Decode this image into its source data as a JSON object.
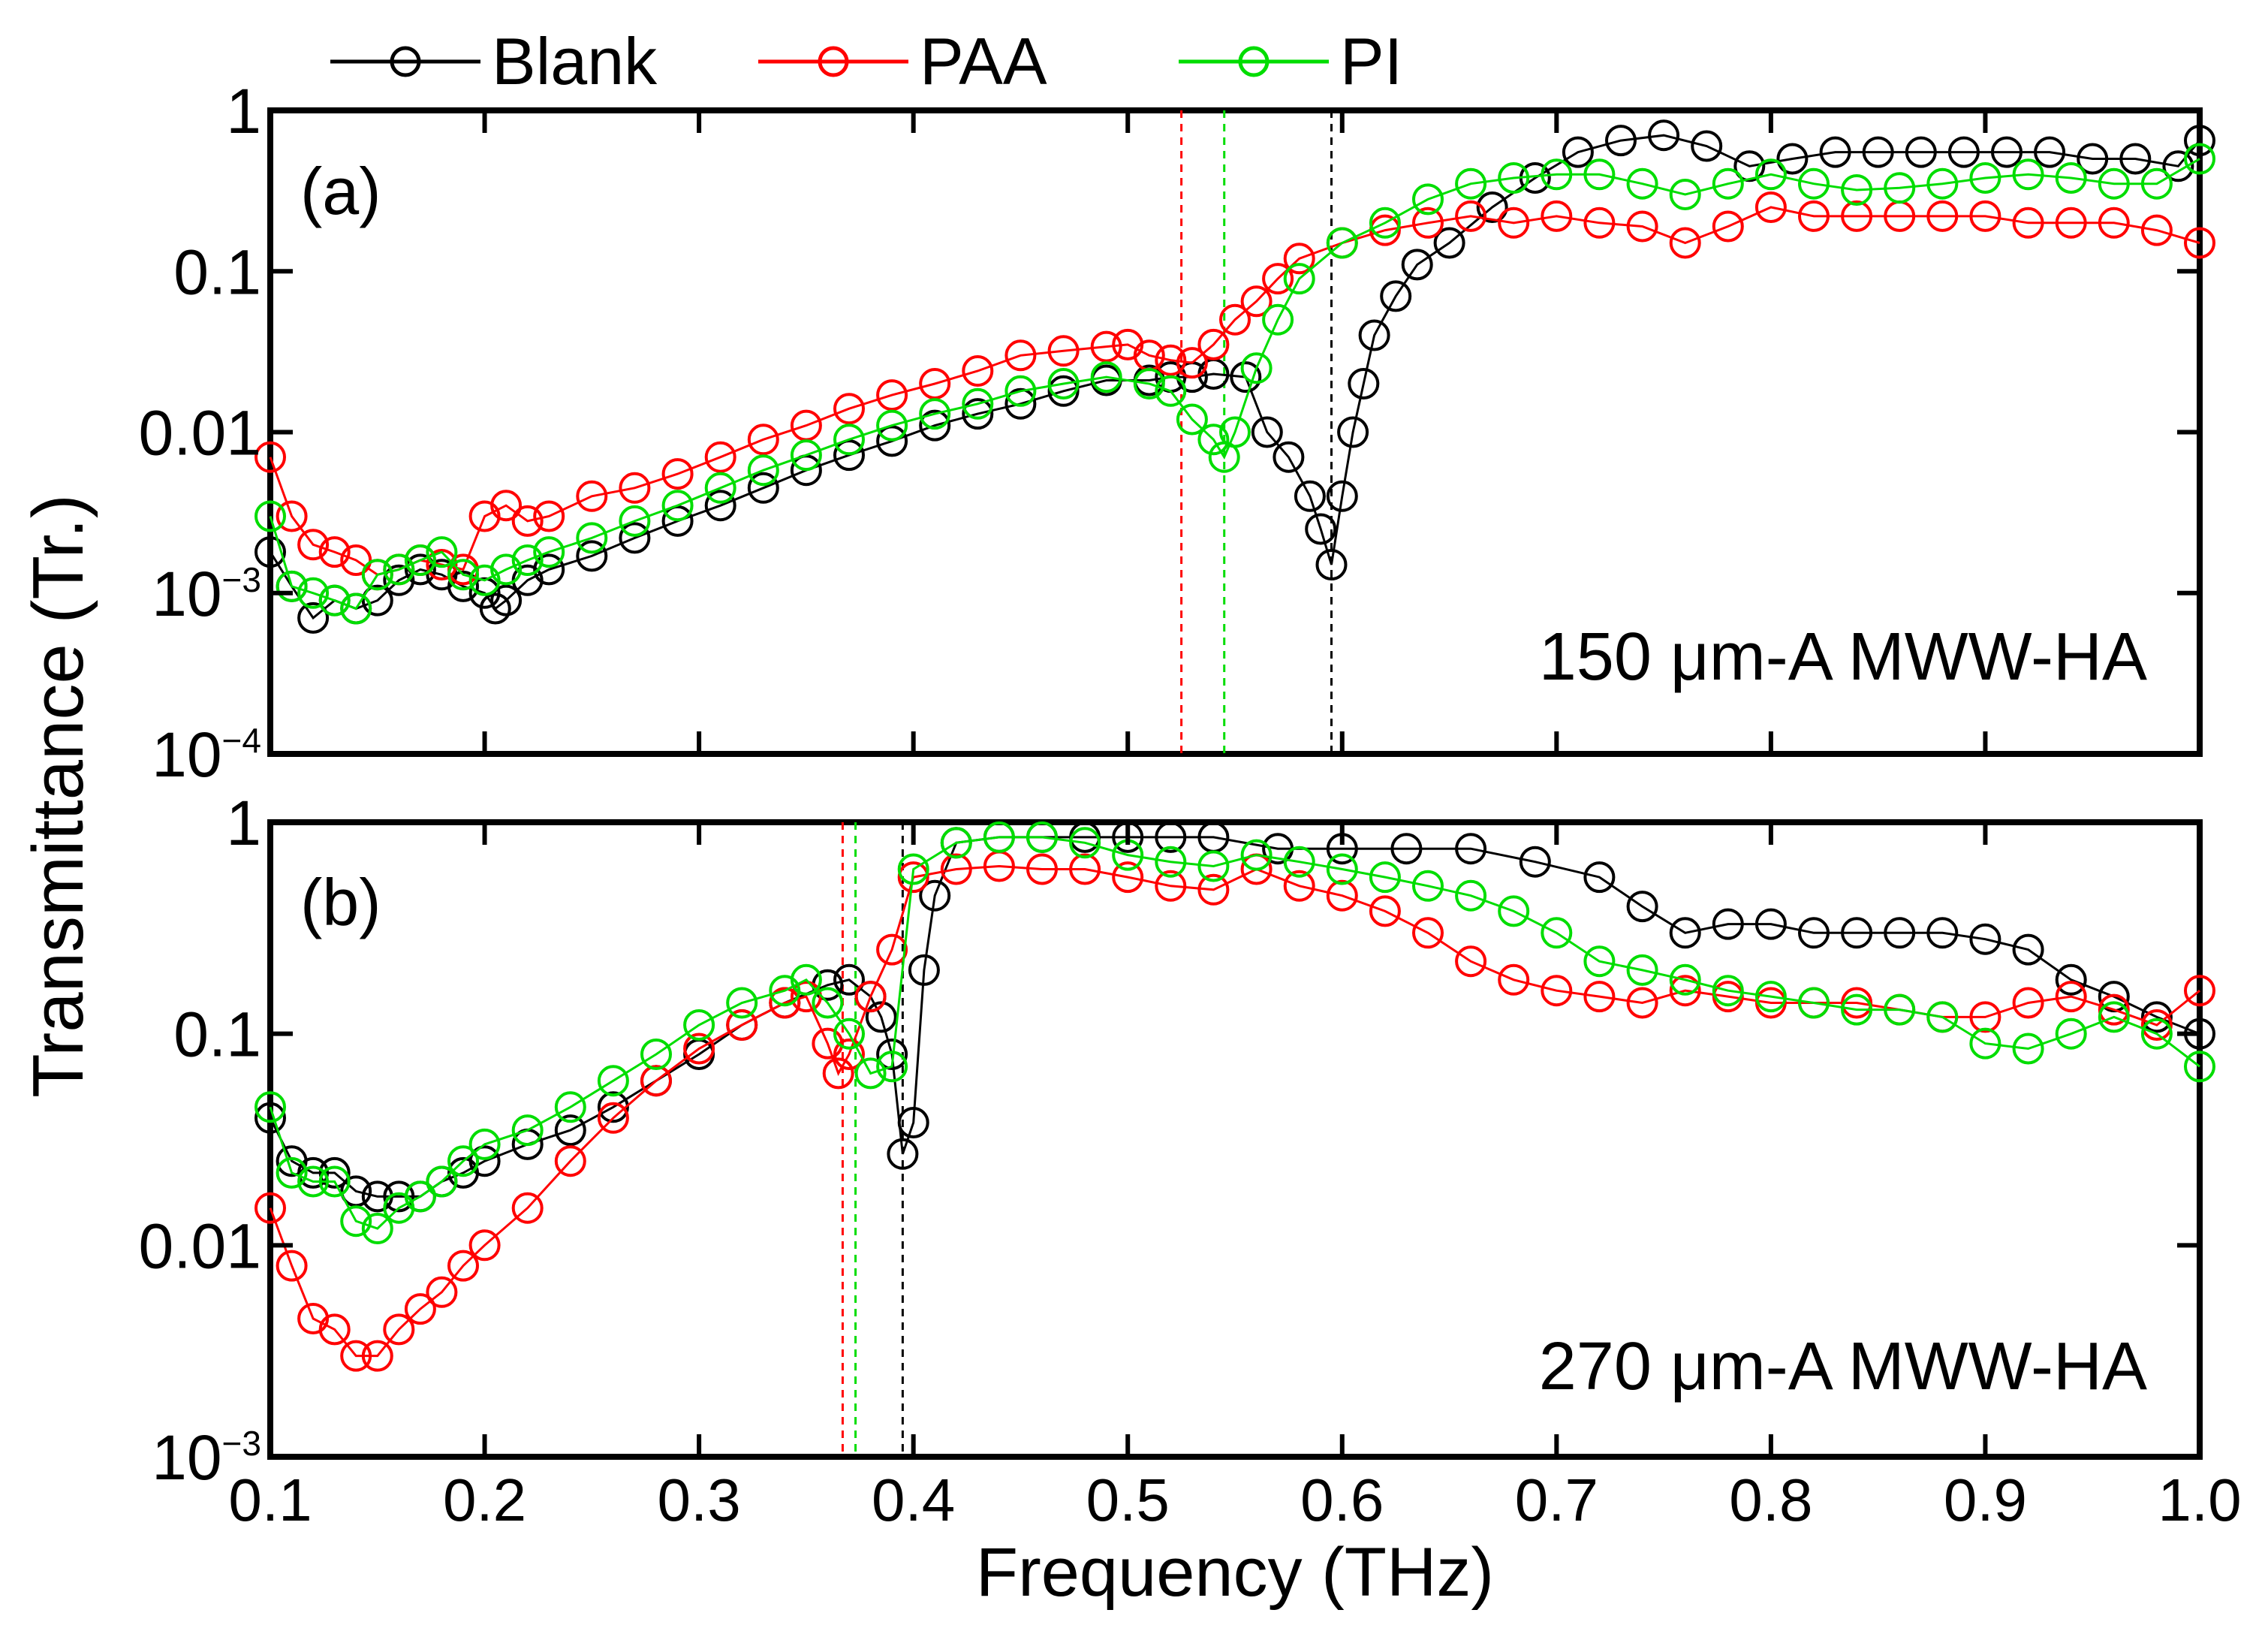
{
  "figure": {
    "ylabel": "Transmittance (Tr.)",
    "xlabel": "Frequency (THz)",
    "x_ticks": [
      "0.1",
      "0.2",
      "0.3",
      "0.4",
      "0.5",
      "0.6",
      "0.7",
      "0.8",
      "0.9",
      "1.0"
    ],
    "legend": [
      {
        "name": "Blank",
        "color": "#000000"
      },
      {
        "name": "PAA",
        "color": "#ff0000"
      },
      {
        "name": "PI",
        "color": "#00dd00"
      }
    ]
  },
  "chart_data": [
    {
      "type": "scatter",
      "panel_label": "(a)",
      "annotation": "150 μm-A MWW-HA",
      "y_scale": "log",
      "xlim": [
        0.1,
        1.0
      ],
      "ylim": [
        0.0001,
        1
      ],
      "y_ticks": [
        {
          "value": 1,
          "mant": "1",
          "exp": ""
        },
        {
          "value": 0.1,
          "mant": "0.1",
          "exp": ""
        },
        {
          "value": 0.01,
          "mant": "0.01",
          "exp": ""
        },
        {
          "value": 0.001,
          "mant": "10",
          "exp": "−3"
        },
        {
          "value": 0.0001,
          "mant": "10",
          "exp": "−4"
        }
      ],
      "vlines": [
        {
          "series": "PAA",
          "x": 0.525
        },
        {
          "series": "PI",
          "x": 0.545
        },
        {
          "series": "Blank",
          "x": 0.595
        }
      ],
      "series": [
        {
          "name": "Blank",
          "color": "#000000",
          "x": [
            0.1,
            0.11,
            0.12,
            0.13,
            0.14,
            0.15,
            0.16,
            0.17,
            0.18,
            0.19,
            0.2,
            0.205,
            0.21,
            0.22,
            0.23,
            0.25,
            0.27,
            0.29,
            0.31,
            0.33,
            0.35,
            0.37,
            0.39,
            0.41,
            0.43,
            0.45,
            0.47,
            0.49,
            0.51,
            0.52,
            0.53,
            0.54,
            0.555,
            0.565,
            0.575,
            0.585,
            0.59,
            0.595,
            0.6,
            0.605,
            0.61,
            0.615,
            0.625,
            0.635,
            0.65,
            0.67,
            0.69,
            0.71,
            0.73,
            0.75,
            0.77,
            0.79,
            0.81,
            0.83,
            0.85,
            0.87,
            0.89,
            0.91,
            0.93,
            0.95,
            0.97,
            0.99,
            1.0
          ],
          "y": [
            0.0018,
            0.0011,
            0.0007,
            0.0009,
            0.0008,
            0.0009,
            0.0012,
            0.0014,
            0.0013,
            0.0011,
            0.001,
            0.0008,
            0.0009,
            0.0012,
            0.0014,
            0.0017,
            0.0022,
            0.0028,
            0.0035,
            0.0045,
            0.0058,
            0.0072,
            0.0088,
            0.011,
            0.013,
            0.015,
            0.018,
            0.021,
            0.021,
            0.022,
            0.022,
            0.023,
            0.022,
            0.01,
            0.007,
            0.004,
            0.0025,
            0.0015,
            0.004,
            0.01,
            0.02,
            0.04,
            0.07,
            0.11,
            0.15,
            0.25,
            0.38,
            0.55,
            0.65,
            0.7,
            0.6,
            0.45,
            0.5,
            0.55,
            0.55,
            0.55,
            0.55,
            0.55,
            0.55,
            0.5,
            0.5,
            0.45,
            0.65
          ]
        },
        {
          "name": "PAA",
          "color": "#ff0000",
          "x": [
            0.1,
            0.11,
            0.12,
            0.13,
            0.14,
            0.15,
            0.16,
            0.17,
            0.18,
            0.19,
            0.2,
            0.21,
            0.22,
            0.23,
            0.25,
            0.27,
            0.29,
            0.31,
            0.33,
            0.35,
            0.37,
            0.39,
            0.41,
            0.43,
            0.45,
            0.47,
            0.49,
            0.5,
            0.51,
            0.52,
            0.53,
            0.54,
            0.55,
            0.56,
            0.57,
            0.58,
            0.6,
            0.62,
            0.64,
            0.66,
            0.68,
            0.7,
            0.72,
            0.74,
            0.76,
            0.78,
            0.8,
            0.82,
            0.84,
            0.86,
            0.88,
            0.9,
            0.92,
            0.94,
            0.96,
            0.98,
            1.0
          ],
          "y": [
            0.007,
            0.003,
            0.002,
            0.0018,
            0.0016,
            0.0013,
            0.0014,
            0.0016,
            0.0015,
            0.0014,
            0.003,
            0.0035,
            0.0028,
            0.003,
            0.004,
            0.0045,
            0.0055,
            0.007,
            0.009,
            0.011,
            0.014,
            0.017,
            0.02,
            0.024,
            0.03,
            0.032,
            0.034,
            0.035,
            0.03,
            0.028,
            0.027,
            0.035,
            0.05,
            0.065,
            0.09,
            0.12,
            0.15,
            0.18,
            0.2,
            0.22,
            0.2,
            0.22,
            0.2,
            0.19,
            0.15,
            0.19,
            0.25,
            0.22,
            0.22,
            0.22,
            0.22,
            0.22,
            0.2,
            0.2,
            0.2,
            0.18,
            0.15
          ]
        },
        {
          "name": "PI",
          "color": "#00dd00",
          "x": [
            0.1,
            0.11,
            0.12,
            0.13,
            0.14,
            0.15,
            0.16,
            0.17,
            0.18,
            0.19,
            0.2,
            0.21,
            0.22,
            0.23,
            0.25,
            0.27,
            0.29,
            0.31,
            0.33,
            0.35,
            0.37,
            0.39,
            0.41,
            0.43,
            0.45,
            0.47,
            0.49,
            0.51,
            0.52,
            0.53,
            0.54,
            0.545,
            0.55,
            0.56,
            0.57,
            0.58,
            0.6,
            0.62,
            0.64,
            0.66,
            0.68,
            0.7,
            0.72,
            0.74,
            0.76,
            0.78,
            0.8,
            0.82,
            0.84,
            0.86,
            0.88,
            0.9,
            0.92,
            0.94,
            0.96,
            0.98,
            1.0
          ],
          "y": [
            0.003,
            0.0011,
            0.001,
            0.0009,
            0.0008,
            0.0013,
            0.0014,
            0.0016,
            0.0018,
            0.0013,
            0.0012,
            0.0014,
            0.0016,
            0.0018,
            0.0022,
            0.0028,
            0.0035,
            0.0045,
            0.0058,
            0.0072,
            0.009,
            0.011,
            0.013,
            0.015,
            0.018,
            0.02,
            0.022,
            0.02,
            0.018,
            0.012,
            0.009,
            0.007,
            0.01,
            0.025,
            0.05,
            0.09,
            0.15,
            0.2,
            0.28,
            0.35,
            0.38,
            0.4,
            0.4,
            0.35,
            0.3,
            0.35,
            0.4,
            0.35,
            0.32,
            0.33,
            0.35,
            0.38,
            0.4,
            0.38,
            0.35,
            0.35,
            0.5
          ]
        }
      ]
    },
    {
      "type": "scatter",
      "panel_label": "(b)",
      "annotation": "270 μm-A MWW-HA",
      "y_scale": "log",
      "xlim": [
        0.1,
        1.0
      ],
      "ylim": [
        0.001,
        1
      ],
      "y_ticks": [
        {
          "value": 1,
          "mant": "1",
          "exp": ""
        },
        {
          "value": 0.1,
          "mant": "0.1",
          "exp": ""
        },
        {
          "value": 0.01,
          "mant": "0.01",
          "exp": ""
        },
        {
          "value": 0.001,
          "mant": "10",
          "exp": "−3"
        }
      ],
      "vlines": [
        {
          "series": "PAA",
          "x": 0.367
        },
        {
          "series": "PI",
          "x": 0.373
        },
        {
          "series": "Blank",
          "x": 0.395
        }
      ],
      "series": [
        {
          "name": "Blank",
          "color": "#000000",
          "x": [
            0.1,
            0.11,
            0.12,
            0.13,
            0.14,
            0.15,
            0.16,
            0.17,
            0.18,
            0.19,
            0.2,
            0.22,
            0.24,
            0.26,
            0.28,
            0.3,
            0.32,
            0.34,
            0.36,
            0.37,
            0.38,
            0.385,
            0.39,
            0.395,
            0.4,
            0.405,
            0.41,
            0.42,
            0.44,
            0.46,
            0.48,
            0.5,
            0.52,
            0.54,
            0.57,
            0.6,
            0.63,
            0.66,
            0.69,
            0.72,
            0.74,
            0.76,
            0.78,
            0.8,
            0.82,
            0.84,
            0.86,
            0.88,
            0.9,
            0.92,
            0.94,
            0.96,
            0.98,
            1.0
          ],
          "y": [
            0.04,
            0.025,
            0.022,
            0.022,
            0.018,
            0.017,
            0.017,
            0.017,
            0.02,
            0.022,
            0.025,
            0.03,
            0.035,
            0.045,
            0.06,
            0.08,
            0.11,
            0.14,
            0.17,
            0.18,
            0.15,
            0.12,
            0.08,
            0.027,
            0.038,
            0.2,
            0.45,
            0.8,
            0.85,
            0.85,
            0.85,
            0.85,
            0.85,
            0.85,
            0.75,
            0.75,
            0.75,
            0.75,
            0.65,
            0.55,
            0.4,
            0.3,
            0.33,
            0.33,
            0.3,
            0.3,
            0.3,
            0.3,
            0.28,
            0.25,
            0.18,
            0.15,
            0.12,
            0.1
          ]
        },
        {
          "name": "PAA",
          "color": "#ff0000",
          "x": [
            0.1,
            0.11,
            0.12,
            0.13,
            0.14,
            0.15,
            0.16,
            0.17,
            0.18,
            0.19,
            0.2,
            0.22,
            0.24,
            0.26,
            0.28,
            0.3,
            0.32,
            0.34,
            0.35,
            0.36,
            0.365,
            0.37,
            0.38,
            0.39,
            0.4,
            0.42,
            0.44,
            0.46,
            0.48,
            0.5,
            0.52,
            0.54,
            0.56,
            0.58,
            0.6,
            0.62,
            0.64,
            0.66,
            0.68,
            0.7,
            0.72,
            0.74,
            0.76,
            0.78,
            0.8,
            0.82,
            0.84,
            0.86,
            0.88,
            0.9,
            0.92,
            0.94,
            0.96,
            0.98,
            1.0
          ],
          "y": [
            0.015,
            0.008,
            0.0045,
            0.004,
            0.003,
            0.003,
            0.004,
            0.005,
            0.006,
            0.008,
            0.01,
            0.015,
            0.025,
            0.04,
            0.06,
            0.085,
            0.11,
            0.14,
            0.15,
            0.09,
            0.065,
            0.08,
            0.15,
            0.25,
            0.55,
            0.6,
            0.62,
            0.6,
            0.6,
            0.55,
            0.5,
            0.48,
            0.6,
            0.5,
            0.45,
            0.38,
            0.3,
            0.22,
            0.18,
            0.16,
            0.15,
            0.14,
            0.16,
            0.15,
            0.14,
            0.14,
            0.14,
            0.13,
            0.12,
            0.12,
            0.14,
            0.15,
            0.13,
            0.11,
            0.16
          ]
        },
        {
          "name": "PI",
          "color": "#00dd00",
          "x": [
            0.1,
            0.11,
            0.12,
            0.13,
            0.14,
            0.15,
            0.16,
            0.17,
            0.18,
            0.19,
            0.2,
            0.22,
            0.24,
            0.26,
            0.28,
            0.3,
            0.32,
            0.34,
            0.35,
            0.36,
            0.37,
            0.38,
            0.39,
            0.4,
            0.42,
            0.44,
            0.46,
            0.48,
            0.5,
            0.52,
            0.54,
            0.56,
            0.58,
            0.6,
            0.62,
            0.64,
            0.66,
            0.68,
            0.7,
            0.72,
            0.74,
            0.76,
            0.78,
            0.8,
            0.82,
            0.84,
            0.86,
            0.88,
            0.9,
            0.92,
            0.94,
            0.96,
            0.98,
            1.0
          ],
          "y": [
            0.045,
            0.022,
            0.02,
            0.02,
            0.013,
            0.012,
            0.015,
            0.017,
            0.02,
            0.025,
            0.03,
            0.035,
            0.045,
            0.06,
            0.08,
            0.11,
            0.14,
            0.16,
            0.18,
            0.14,
            0.1,
            0.065,
            0.07,
            0.6,
            0.8,
            0.85,
            0.85,
            0.8,
            0.7,
            0.65,
            0.62,
            0.7,
            0.65,
            0.6,
            0.55,
            0.5,
            0.45,
            0.38,
            0.3,
            0.22,
            0.2,
            0.18,
            0.16,
            0.15,
            0.14,
            0.13,
            0.13,
            0.12,
            0.09,
            0.085,
            0.1,
            0.12,
            0.1,
            0.07
          ]
        }
      ]
    }
  ]
}
